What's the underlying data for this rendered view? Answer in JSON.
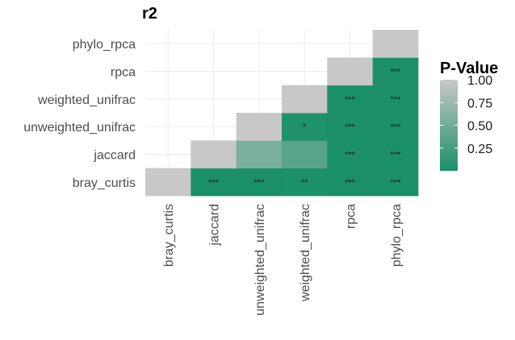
{
  "chart_data": {
    "type": "heatmap",
    "title": "r2",
    "xlabel": "",
    "ylabel": "",
    "x_categories": [
      "bray_curtis",
      "jaccard",
      "unweighted_unifrac",
      "weighted_unifrac",
      "rpca",
      "phylo_rpca"
    ],
    "y_categories": [
      "bray_curtis",
      "jaccard",
      "unweighted_unifrac",
      "weighted_unifrac",
      "rpca",
      "phylo_rpca"
    ],
    "cells": [
      {
        "x": "bray_curtis",
        "y": "bray_curtis",
        "p_value": 1.0,
        "label": ""
      },
      {
        "x": "jaccard",
        "y": "bray_curtis",
        "p_value": 0.001,
        "label": "***"
      },
      {
        "x": "unweighted_unifrac",
        "y": "bray_curtis",
        "p_value": 0.001,
        "label": "***"
      },
      {
        "x": "weighted_unifrac",
        "y": "bray_curtis",
        "p_value": 0.005,
        "label": "**"
      },
      {
        "x": "rpca",
        "y": "bray_curtis",
        "p_value": 0.001,
        "label": "***"
      },
      {
        "x": "phylo_rpca",
        "y": "bray_curtis",
        "p_value": 0.001,
        "label": "***"
      },
      {
        "x": "jaccard",
        "y": "jaccard",
        "p_value": 1.0,
        "label": ""
      },
      {
        "x": "unweighted_unifrac",
        "y": "jaccard",
        "p_value": 0.55,
        "label": ""
      },
      {
        "x": "weighted_unifrac",
        "y": "jaccard",
        "p_value": 0.35,
        "label": ""
      },
      {
        "x": "rpca",
        "y": "jaccard",
        "p_value": 0.001,
        "label": "***"
      },
      {
        "x": "phylo_rpca",
        "y": "jaccard",
        "p_value": 0.001,
        "label": "***"
      },
      {
        "x": "unweighted_unifrac",
        "y": "unweighted_unifrac",
        "p_value": 1.0,
        "label": ""
      },
      {
        "x": "weighted_unifrac",
        "y": "unweighted_unifrac",
        "p_value": 0.03,
        "label": "*"
      },
      {
        "x": "rpca",
        "y": "unweighted_unifrac",
        "p_value": 0.001,
        "label": "***"
      },
      {
        "x": "phylo_rpca",
        "y": "unweighted_unifrac",
        "p_value": 0.001,
        "label": "***"
      },
      {
        "x": "weighted_unifrac",
        "y": "weighted_unifrac",
        "p_value": 1.0,
        "label": ""
      },
      {
        "x": "rpca",
        "y": "weighted_unifrac",
        "p_value": 0.001,
        "label": "***"
      },
      {
        "x": "phylo_rpca",
        "y": "weighted_unifrac",
        "p_value": 0.001,
        "label": "***"
      },
      {
        "x": "rpca",
        "y": "rpca",
        "p_value": 1.0,
        "label": ""
      },
      {
        "x": "phylo_rpca",
        "y": "rpca",
        "p_value": 0.001,
        "label": "***"
      },
      {
        "x": "phylo_rpca",
        "y": "phylo_rpca",
        "p_value": 1.0,
        "label": ""
      }
    ],
    "legend": {
      "title": "P-Value",
      "ticks": [
        1.0,
        0.75,
        0.5,
        0.25
      ],
      "tick_labels": [
        "1.00",
        "0.75",
        "0.50",
        "0.25"
      ],
      "range": [
        0,
        1
      ],
      "low_color": "#1b9068",
      "high_color": "#c8c8c8",
      "placement": "right"
    },
    "grid": true
  }
}
